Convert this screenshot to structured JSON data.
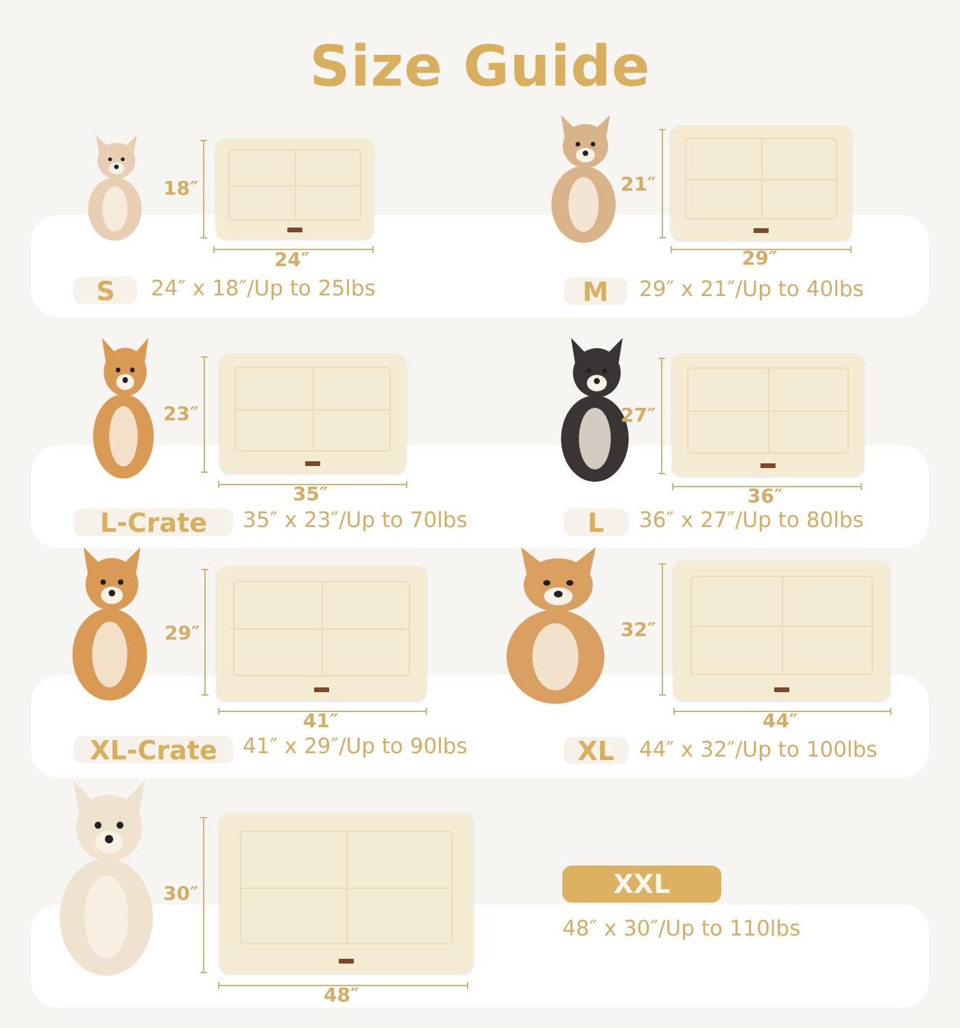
{
  "title": "Size Guide",
  "colors": {
    "accent": "#d8ae5f",
    "background": "#f7f5f1",
    "mat": "#f4ecd2"
  },
  "sizes": [
    {
      "size": "S",
      "width": "24″",
      "height": "18″",
      "spec": "24″ x 18″/Up to 25lbs",
      "dog": "chihuahua-puppy",
      "dog_color": "#e8cfb4"
    },
    {
      "size": "M",
      "width": "29″",
      "height": "21″",
      "spec": "29″ x 21″/Up to 40lbs",
      "dog": "fluffy-small-dog",
      "dog_color": "#d9b48a"
    },
    {
      "size": "L-Crate",
      "width": "35″",
      "height": "23″",
      "spec": "35″ x 23″/Up to 70lbs",
      "dog": "corgi",
      "dog_color": "#d99a55"
    },
    {
      "size": "L",
      "width": "36″",
      "height": "27″",
      "spec": "36″ x 27″/Up to 80lbs",
      "dog": "border-collie",
      "dog_color": "#3a3434"
    },
    {
      "size": "XL-Crate",
      "width": "41″",
      "height": "29″",
      "spec": "41″ x 29″/Up to 90lbs",
      "dog": "shiba-inu",
      "dog_color": "#d99a55"
    },
    {
      "size": "XL",
      "width": "44″",
      "height": "32″",
      "spec": "44″ x 32″/Up to 100lbs",
      "dog": "golden-retriever",
      "dog_color": "#d9a062"
    },
    {
      "size": "XXL",
      "width": "48″",
      "height": "30″",
      "spec": "48″ x 30″/Up to 110lbs",
      "dog": "white-golden-retriever",
      "dog_color": "#efe3cf"
    }
  ]
}
